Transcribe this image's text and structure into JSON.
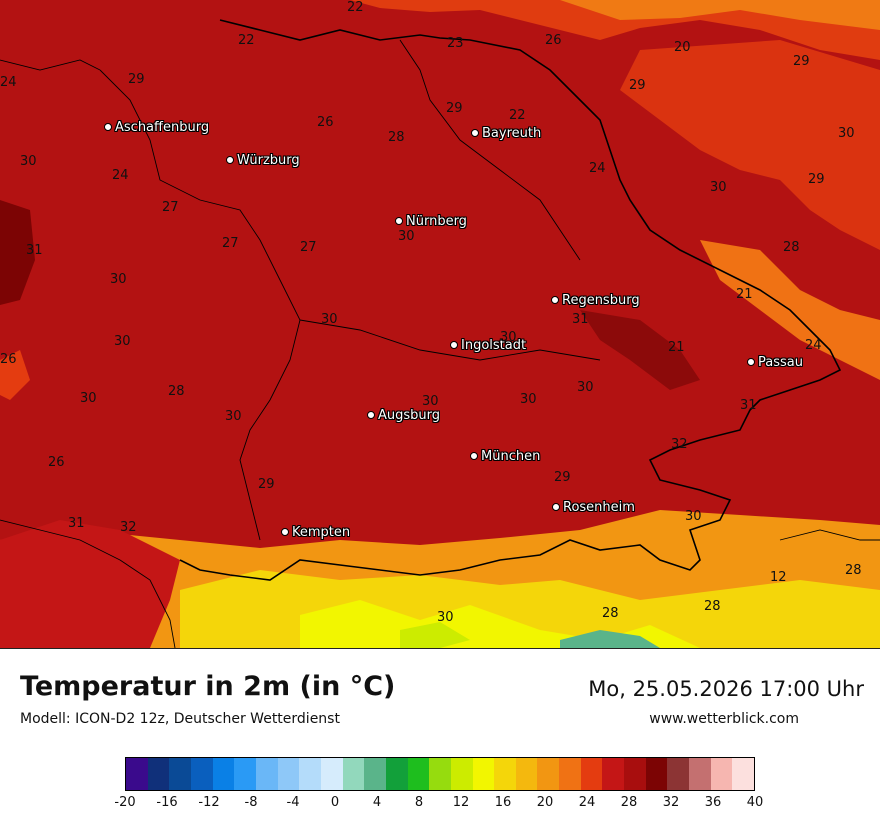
{
  "map": {
    "cities": [
      {
        "name": "Aschaffenburg"
      },
      {
        "name": "Würzburg"
      },
      {
        "name": "Bayreuth"
      },
      {
        "name": "Nürnberg"
      },
      {
        "name": "Regensburg"
      },
      {
        "name": "Ingolstadt"
      },
      {
        "name": "Passau"
      },
      {
        "name": "Augsburg"
      },
      {
        "name": "München"
      },
      {
        "name": "Rosenheim"
      },
      {
        "name": "Kempten"
      }
    ],
    "temperature_labels": [
      "22",
      "22",
      "23",
      "26",
      "20",
      "29",
      "24",
      "29",
      "29",
      "22",
      "29",
      "26",
      "28",
      "30",
      "30",
      "24",
      "24",
      "29",
      "30",
      "27",
      "27",
      "27",
      "30",
      "31",
      "28",
      "30",
      "21",
      "30",
      "31",
      "30",
      "30",
      "21",
      "24",
      "26",
      "28",
      "30",
      "30",
      "30",
      "30",
      "26",
      "30",
      "29",
      "31",
      "32",
      "29",
      "30",
      "12",
      "28",
      "32",
      "31",
      "30",
      "28",
      "28"
    ]
  },
  "header": {
    "title": "Temperatur in 2m (in °C)",
    "model": "Modell: ICON-D2 12z, Deutscher Wetterdienst",
    "datetime": "Mo, 25.05.2026 17:00 Uhr",
    "website": "www.wetterblick.com"
  },
  "legend": {
    "colors": [
      "#3a0a8c",
      "#10307a",
      "#0a4a96",
      "#0a5fbe",
      "#0a80e6",
      "#2a9af5",
      "#6ab7f7",
      "#8ec8f8",
      "#b4dcfa",
      "#d6ecfc",
      "#92d8bc",
      "#5ab48a",
      "#12a03a",
      "#1ebe1e",
      "#96dc0e",
      "#ccec00",
      "#f2f600",
      "#f4d60a",
      "#f4b80e",
      "#f29612",
      "#f07214",
      "#e43c10",
      "#c41616",
      "#a80e0e",
      "#7c0404",
      "#8c3434",
      "#c47070",
      "#f6b6b0",
      "#fce0de"
    ],
    "ticks": [
      "-20",
      "-16",
      "-12",
      "-8",
      "-4",
      "0",
      "4",
      "8",
      "12",
      "16",
      "20",
      "24",
      "28",
      "32",
      "36",
      "40"
    ]
  }
}
